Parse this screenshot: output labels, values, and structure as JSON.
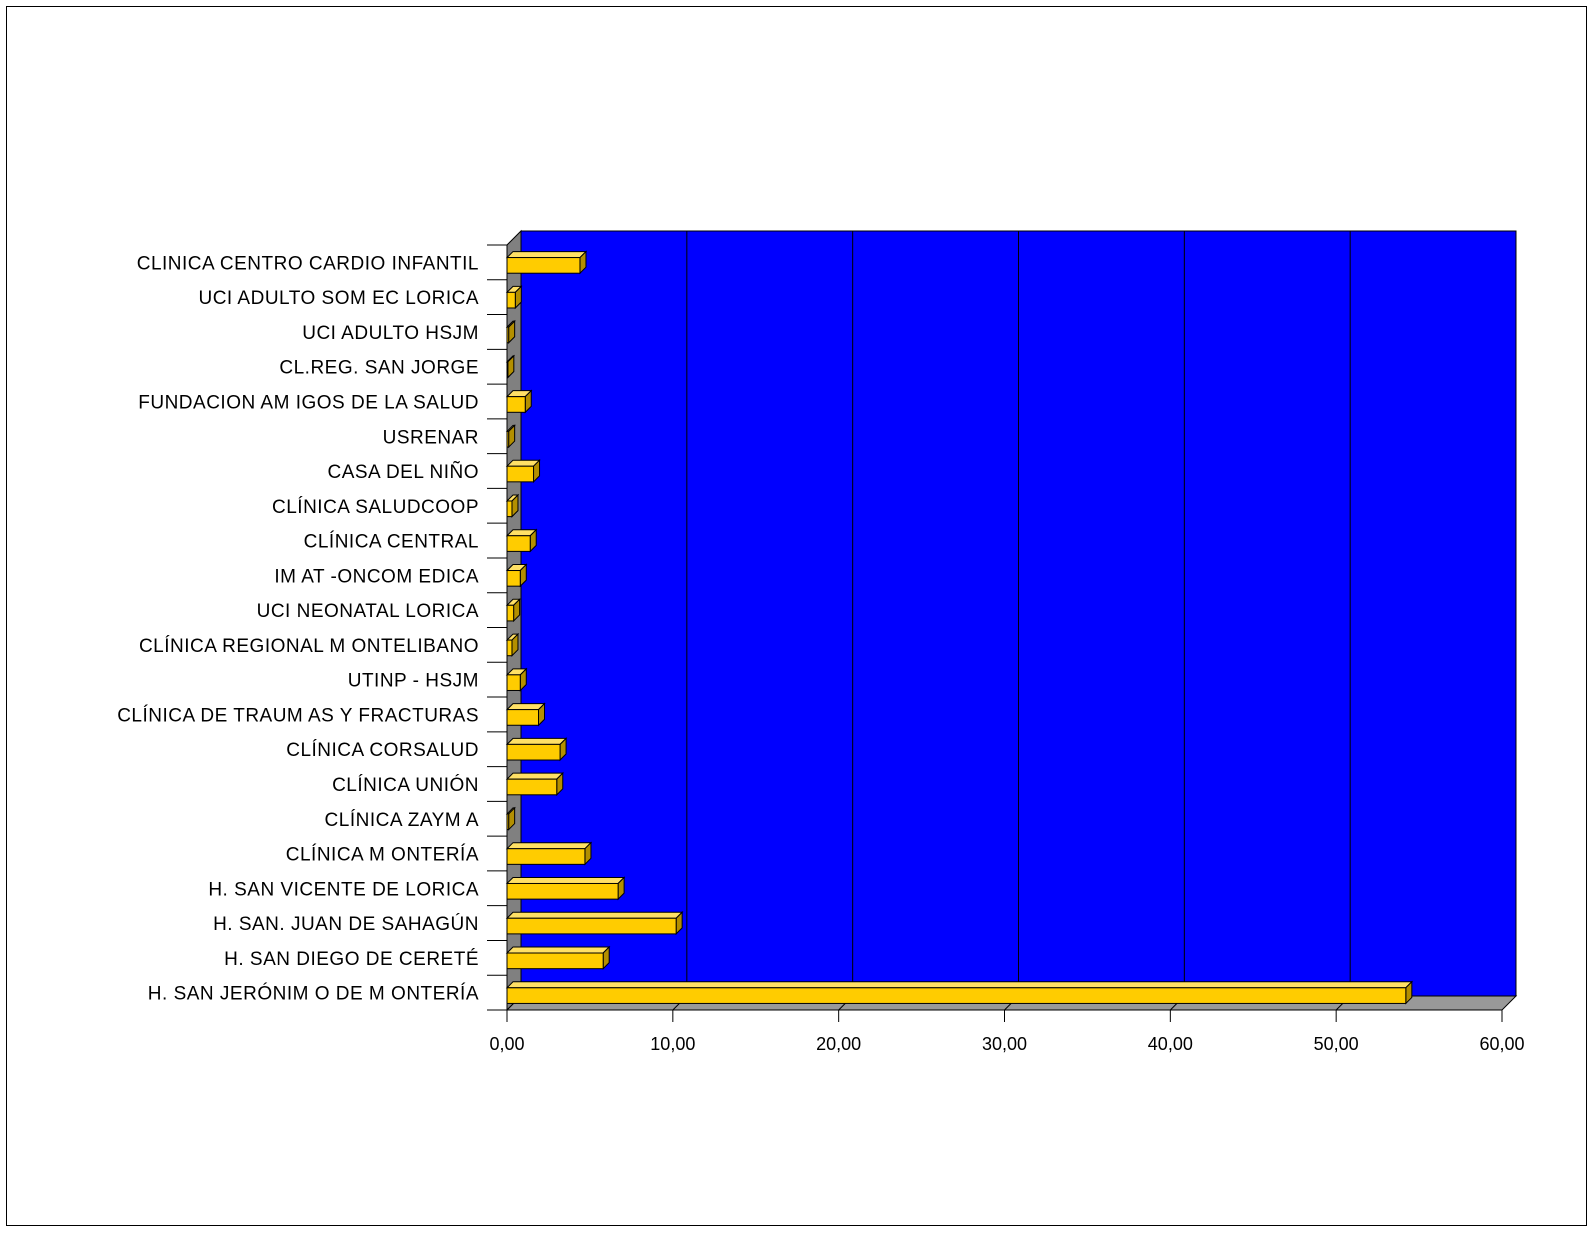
{
  "chart_data": {
    "type": "bar",
    "orientation": "horizontal",
    "categories": [
      "CLINICA CENTRO CARDIO INFANTIL",
      "UCI ADULTO SOM EC LORICA",
      "UCI ADULTO HSJM",
      "CL.REG. SAN JORGE",
      "FUNDACION AM IGOS DE LA SALUD",
      "USRENAR",
      "CASA  DEL NIÑO",
      "CLÍNICA SALUDCOOP",
      "CLÍNICA CENTRAL",
      "IM AT -ONCOM EDICA",
      "UCI NEONATAL LORICA",
      "CLÍNICA REGIONAL M ONTELIBANO",
      "UTINP - HSJM",
      "CLÍNICA DE TRAUM AS Y FRACTURAS",
      "CLÍNICA  CORSALUD",
      "CLÍNICA UNIÓN",
      "CLÍNICA ZAYM A",
      "CLÍNICA M ONTERÍA",
      "H. SAN VICENTE DE LORICA",
      "H. SAN. JUAN DE SAHAGÚN",
      "H. SAN DIEGO DE CERETÉ",
      "H. SAN JERÓNIM O DE M ONTERÍA"
    ],
    "values": [
      4.4,
      0.5,
      0.1,
      0.05,
      1.1,
      0.1,
      1.6,
      0.3,
      1.4,
      0.8,
      0.4,
      0.3,
      0.8,
      1.9,
      3.2,
      3.0,
      0.1,
      4.7,
      6.7,
      10.2,
      5.8,
      54.2
    ],
    "xlim": [
      0,
      60
    ],
    "xticks": [
      "0,00",
      "10,00",
      "20,00",
      "30,00",
      "40,00",
      "50,00",
      "60,00"
    ],
    "title": "",
    "xlabel": "",
    "ylabel": "",
    "grid": true,
    "legend": "none",
    "colors": {
      "plot_background": "#0000ff",
      "bar_face": "#ffcc00",
      "bar_top": "#ffe066",
      "bar_side": "#b38f00",
      "floor": "#999999",
      "wall_side": "#808080"
    }
  }
}
